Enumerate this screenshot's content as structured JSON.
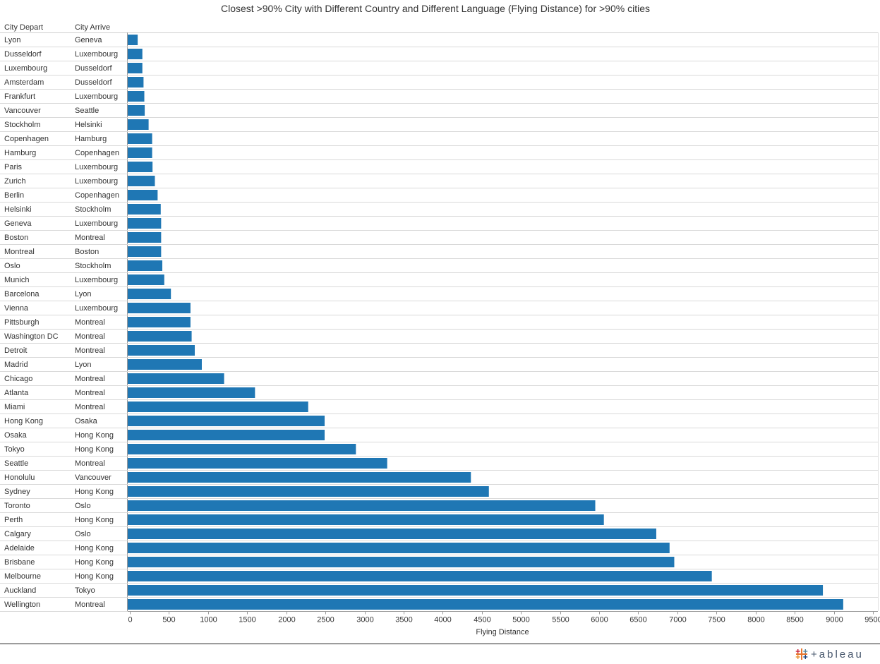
{
  "chart_data": {
    "type": "bar",
    "orientation": "horizontal",
    "title": "Closest >90% City with Different Country and Different Language (Flying Distance) for >90% cities",
    "row_headers": [
      "City Depart",
      "City Arrive"
    ],
    "xlabel": "Flying Distance",
    "xlim": [
      0,
      9500
    ],
    "xticks": [
      0,
      500,
      1000,
      1500,
      2000,
      2500,
      3000,
      3500,
      4000,
      4500,
      5000,
      5500,
      6000,
      6500,
      7000,
      7500,
      8000,
      8500,
      9000,
      9500
    ],
    "bar_color": "#1f77b4",
    "rows": [
      {
        "depart": "Lyon",
        "arrive": "Geneva",
        "value": 100
      },
      {
        "depart": "Dusseldorf",
        "arrive": "Luxembourg",
        "value": 160
      },
      {
        "depart": "Luxembourg",
        "arrive": "Dusseldorf",
        "value": 160
      },
      {
        "depart": "Amsterdam",
        "arrive": "Dusseldorf",
        "value": 175
      },
      {
        "depart": "Frankfurt",
        "arrive": "Luxembourg",
        "value": 185
      },
      {
        "depart": "Vancouver",
        "arrive": "Seattle",
        "value": 190
      },
      {
        "depart": "Stockholm",
        "arrive": "Helsinki",
        "value": 240
      },
      {
        "depart": "Copenhagen",
        "arrive": "Hamburg",
        "value": 285
      },
      {
        "depart": "Hamburg",
        "arrive": "Copenhagen",
        "value": 285
      },
      {
        "depart": "Paris",
        "arrive": "Luxembourg",
        "value": 290
      },
      {
        "depart": "Zurich",
        "arrive": "Luxembourg",
        "value": 320
      },
      {
        "depart": "Berlin",
        "arrive": "Copenhagen",
        "value": 355
      },
      {
        "depart": "Helsinki",
        "arrive": "Stockholm",
        "value": 395
      },
      {
        "depart": "Geneva",
        "arrive": "Luxembourg",
        "value": 400
      },
      {
        "depart": "Boston",
        "arrive": "Montreal",
        "value": 400
      },
      {
        "depart": "Montreal",
        "arrive": "Boston",
        "value": 400
      },
      {
        "depart": "Oslo",
        "arrive": "Stockholm",
        "value": 415
      },
      {
        "depart": "Munich",
        "arrive": "Luxembourg",
        "value": 440
      },
      {
        "depart": "Barcelona",
        "arrive": "Lyon",
        "value": 525
      },
      {
        "depart": "Vienna",
        "arrive": "Luxembourg",
        "value": 775
      },
      {
        "depart": "Pittsburgh",
        "arrive": "Montreal",
        "value": 775
      },
      {
        "depart": "Washington DC",
        "arrive": "Montreal",
        "value": 790
      },
      {
        "depart": "Detroit",
        "arrive": "Montreal",
        "value": 830
      },
      {
        "depart": "Madrid",
        "arrive": "Lyon",
        "value": 920
      },
      {
        "depart": "Chicago",
        "arrive": "Montreal",
        "value": 1205
      },
      {
        "depart": "Atlanta",
        "arrive": "Montreal",
        "value": 1600
      },
      {
        "depart": "Miami",
        "arrive": "Montreal",
        "value": 2280
      },
      {
        "depart": "Hong Kong",
        "arrive": "Osaka",
        "value": 2490
      },
      {
        "depart": "Osaka",
        "arrive": "Hong Kong",
        "value": 2490
      },
      {
        "depart": "Tokyo",
        "arrive": "Hong Kong",
        "value": 2890
      },
      {
        "depart": "Seattle",
        "arrive": "Montreal",
        "value": 3290
      },
      {
        "depart": "Honolulu",
        "arrive": "Vancouver",
        "value": 4360
      },
      {
        "depart": "Sydney",
        "arrive": "Hong Kong",
        "value": 4590
      },
      {
        "depart": "Toronto",
        "arrive": "Oslo",
        "value": 5950
      },
      {
        "depart": "Perth",
        "arrive": "Hong Kong",
        "value": 6060
      },
      {
        "depart": "Calgary",
        "arrive": "Oslo",
        "value": 6730
      },
      {
        "depart": "Adelaide",
        "arrive": "Hong Kong",
        "value": 6900
      },
      {
        "depart": "Brisbane",
        "arrive": "Hong Kong",
        "value": 6960
      },
      {
        "depart": "Melbourne",
        "arrive": "Hong Kong",
        "value": 7440
      },
      {
        "depart": "Auckland",
        "arrive": "Tokyo",
        "value": 8860
      },
      {
        "depart": "Wellington",
        "arrive": "Montreal",
        "value": 9120
      }
    ]
  },
  "branding": {
    "logo_text": "+ableau",
    "logo_icon": "tableau-logo-icon",
    "logo_colors": [
      "#e8762d",
      "#c72037",
      "#5b879b",
      "#1f457e",
      "#59879b",
      "#eb912b"
    ]
  }
}
